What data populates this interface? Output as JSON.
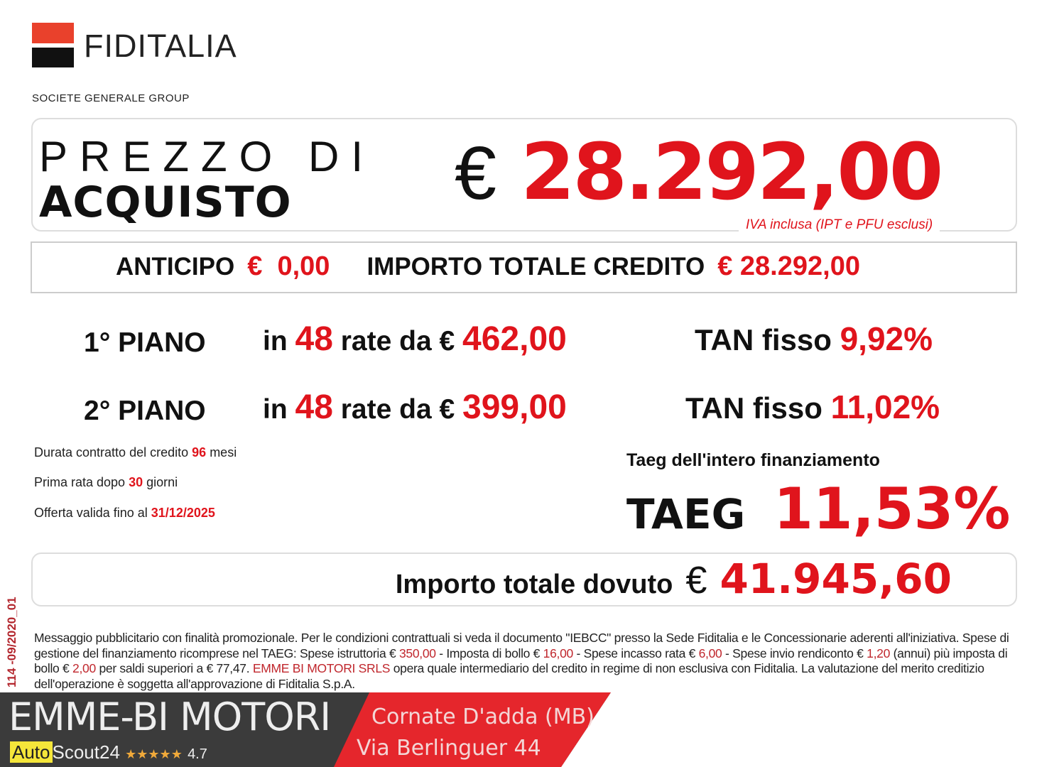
{
  "logo": {
    "name": "FIDITALIA",
    "group": "SOCIETE GENERALE GROUP"
  },
  "price": {
    "label_line1": "PREZZO DI",
    "label_line2": "ACQUISTO",
    "currency": "€",
    "value": "28.292,00",
    "note": "IVA inclusa (IPT e PFU esclusi)"
  },
  "credit": {
    "anticipo_label": "ANTICIPO",
    "anticipo_value": "€  0,00",
    "total_label": "IMPORTO TOTALE CREDITO",
    "total_value": "€ 28.292,00"
  },
  "plans": [
    {
      "label": "1° PIANO",
      "in": "in",
      "count": "48",
      "rate_text": "rate da €",
      "amount": "462,00",
      "tan_label": "TAN fisso",
      "tan": "9,92%"
    },
    {
      "label": "2° PIANO",
      "in": "in",
      "count": "48",
      "rate_text": "rate da €",
      "amount": "399,00",
      "tan_label": "TAN fisso",
      "tan": "11,02%"
    }
  ],
  "details": [
    {
      "text": "Durata contratto del credito",
      "value": "96",
      "suffix": "mesi"
    },
    {
      "text": "Prima rata dopo",
      "value": "30",
      "suffix": "giorni"
    },
    {
      "text": "Offerta valida fino al",
      "value": "31/12/2025",
      "suffix": ""
    }
  ],
  "taeg": {
    "caption": "Taeg dell'intero finanziamento",
    "label": "TAEG",
    "value": "11,53%"
  },
  "total_due": {
    "label": "Importo totale dovuto",
    "currency": "€",
    "value": "41.945,60"
  },
  "side_code": "114 -09/2020_01",
  "fine_print": {
    "p1": "Messaggio pubblicitario con finalità promozionale. Per le condizioni contrattuali si veda il documento \"IEBCC\" presso la Sede Fiditalia e le Concessionarie aderenti all'iniziativa. Spese di gestione del finanziamento ricomprese nel TAEG: Spese istruttoria € ",
    "v1": "350,00",
    "p2": " - Imposta di bollo € ",
    "v2": "16,00",
    "p3": " -  Spese incasso rata € ",
    "v3": "6,00",
    "p4": " - Spese invio rendiconto € ",
    "v4": "1,20",
    "p5": " (annui) più imposta di bollo € ",
    "v5": "2,00",
    "p6": " per saldi superiori a € 77,47.  ",
    "v6": "EMME BI MOTORI SRLS",
    "p7": " opera quale intermediario del credito in regime di non esclusiva con Fiditalia. La valutazione del merito creditizio dell'operazione è soggetta all'approvazione di Fiditalia S.p.A."
  },
  "dealer": {
    "name": "EMME-BI MOTORI",
    "city": "Cornate D'adda (MB)",
    "address": "Via Berlinguer 44",
    "platform_a": "Auto",
    "platform_b": "Scout24",
    "stars": "★★★★★",
    "rating": "4.7"
  },
  "colors": {
    "red": "#e0141c",
    "dark": "#3b3b3b",
    "banner_red": "#e5262c"
  }
}
